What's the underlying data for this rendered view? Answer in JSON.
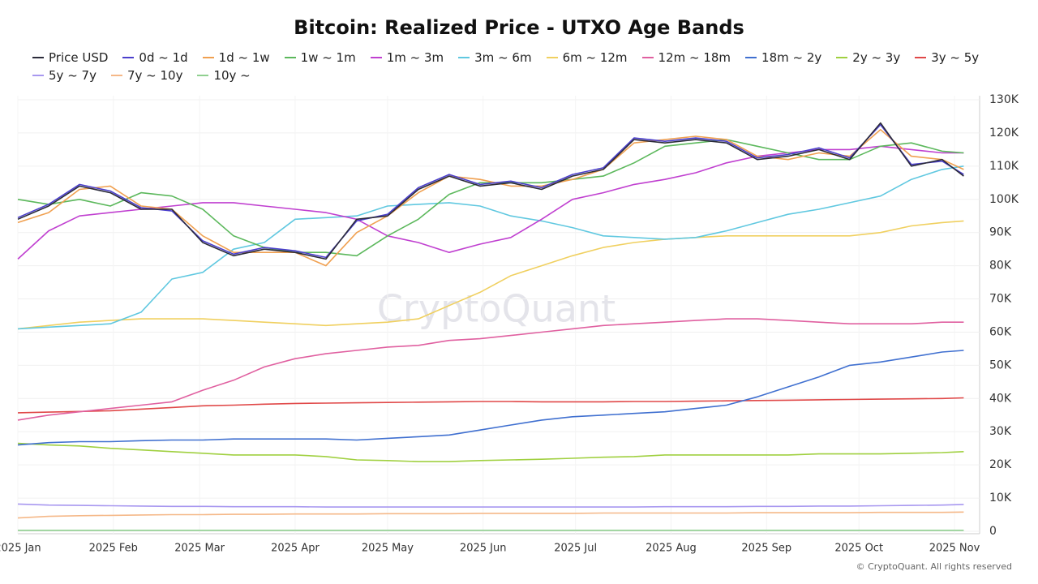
{
  "chart_data": {
    "type": "line",
    "title": "Bitcoin: Realized Price - UTXO Age Bands",
    "watermark": "CryptoQuant",
    "credit": "© CryptoQuant. All rights reserved",
    "x": [
      0,
      10,
      20,
      30,
      40,
      50,
      60,
      70,
      80,
      90,
      100,
      110,
      120,
      130,
      140,
      150,
      160,
      170,
      180,
      190,
      200,
      210,
      220,
      230,
      240,
      250,
      260,
      270,
      280,
      290,
      300,
      307
    ],
    "xlim": [
      0,
      309
    ],
    "xticks": [
      {
        "value": 0,
        "label": "2025 Jan"
      },
      {
        "value": 31,
        "label": "2025 Feb"
      },
      {
        "value": 59,
        "label": "2025 Mar"
      },
      {
        "value": 90,
        "label": "2025 Apr"
      },
      {
        "value": 120,
        "label": "2025 May"
      },
      {
        "value": 151,
        "label": "2025 Jun"
      },
      {
        "value": 181,
        "label": "2025 Jul"
      },
      {
        "value": 212,
        "label": "2025 Aug"
      },
      {
        "value": 243,
        "label": "2025 Sep"
      },
      {
        "value": 273,
        "label": "2025 Oct"
      },
      {
        "value": 304,
        "label": "2025 Nov"
      }
    ],
    "ylim": [
      0,
      130000
    ],
    "yticks": [
      0,
      {
        "value": 10000,
        "label": "10K"
      },
      {
        "value": 20000,
        "label": "20K"
      },
      {
        "value": 30000,
        "label": "30K"
      },
      {
        "value": 40000,
        "label": "40K"
      },
      {
        "value": 50000,
        "label": "50K"
      },
      {
        "value": 60000,
        "label": "60K"
      },
      {
        "value": 70000,
        "label": "70K"
      },
      {
        "value": 80000,
        "label": "80K"
      },
      {
        "value": 90000,
        "label": "90K"
      },
      {
        "value": 100000,
        "label": "100K"
      },
      {
        "value": 110000,
        "label": "110K"
      },
      {
        "value": 120000,
        "label": "120K"
      },
      {
        "value": 130000,
        "label": "130K"
      }
    ],
    "grid": true,
    "series": [
      {
        "name": "Price USD",
        "color": "#2b2b3a",
        "values": [
          94000,
          98000,
          104000,
          102000,
          97000,
          97000,
          87000,
          83000,
          85000,
          84000,
          82000,
          94000,
          95000,
          103000,
          107000,
          104000,
          105000,
          103000,
          107000,
          109000,
          118000,
          117000,
          118000,
          117000,
          112000,
          113000,
          115000,
          112000,
          123000,
          110000,
          112000,
          107000
        ]
      },
      {
        "name": "0d ~ 1d",
        "color": "#4b3fcc",
        "values": [
          94500,
          98500,
          104500,
          102500,
          97500,
          96500,
          87500,
          83500,
          85500,
          84500,
          82500,
          93500,
          95500,
          103500,
          107500,
          104500,
          105500,
          103500,
          107500,
          109500,
          118500,
          117500,
          118500,
          117500,
          112500,
          113500,
          115500,
          112500,
          122500,
          110500,
          111500,
          107500
        ]
      },
      {
        "name": "1d ~ 1w",
        "color": "#f0a050",
        "values": [
          93000,
          96000,
          103000,
          104000,
          98000,
          97000,
          89000,
          84000,
          84000,
          84000,
          80000,
          90000,
          95000,
          102000,
          107000,
          106000,
          104000,
          104000,
          106000,
          109000,
          117000,
          118000,
          119000,
          118000,
          113000,
          112000,
          114000,
          113000,
          121000,
          113000,
          112000,
          109000
        ]
      },
      {
        "name": "1w ~ 1m",
        "color": "#5cb85c",
        "values": [
          100000,
          98500,
          100000,
          98000,
          102000,
          101000,
          97000,
          89000,
          85500,
          84000,
          84000,
          83000,
          89000,
          94000,
          101500,
          105000,
          105000,
          105000,
          106000,
          107000,
          111000,
          116000,
          117000,
          118000,
          116000,
          114000,
          112000,
          112000,
          116000,
          117000,
          114500,
          114000
        ]
      },
      {
        "name": "1m ~ 3m",
        "color": "#c040d0",
        "values": [
          82000,
          90500,
          95000,
          96000,
          97000,
          98000,
          99000,
          99000,
          98000,
          97000,
          96000,
          94000,
          89000,
          87000,
          84000,
          86500,
          88500,
          94000,
          100000,
          102000,
          104500,
          106000,
          108000,
          111000,
          113000,
          114000,
          115000,
          115000,
          116000,
          115000,
          114000,
          114000
        ]
      },
      {
        "name": "3m ~ 6m",
        "color": "#60c8e0",
        "values": [
          61000,
          61500,
          62000,
          62500,
          66000,
          76000,
          78000,
          85000,
          87000,
          94000,
          94500,
          95000,
          98000,
          98500,
          99000,
          98000,
          95000,
          93500,
          91500,
          89000,
          88500,
          88000,
          88500,
          90500,
          93000,
          95500,
          97000,
          99000,
          101000,
          106000,
          109000,
          110000
        ]
      },
      {
        "name": "6m ~ 12m",
        "color": "#f0d060",
        "values": [
          61000,
          62000,
          63000,
          63500,
          64000,
          64000,
          64000,
          63500,
          63000,
          62500,
          62000,
          62500,
          63000,
          64000,
          68000,
          72000,
          77000,
          80000,
          83000,
          85500,
          87000,
          88000,
          88500,
          89000,
          89000,
          89000,
          89000,
          89000,
          90000,
          92000,
          93000,
          93500
        ]
      },
      {
        "name": "12m ~ 18m",
        "color": "#e060a0",
        "values": [
          33500,
          35000,
          36000,
          37000,
          38000,
          39000,
          42500,
          45500,
          49500,
          52000,
          53500,
          54500,
          55500,
          56000,
          57500,
          58000,
          59000,
          60000,
          61000,
          62000,
          62500,
          63000,
          63500,
          64000,
          64000,
          63500,
          63000,
          62500,
          62500,
          62500,
          63000,
          63000
        ]
      },
      {
        "name": "18m ~ 2y",
        "color": "#4070d0",
        "values": [
          26000,
          26700,
          27000,
          27000,
          27300,
          27500,
          27500,
          27800,
          27800,
          27800,
          27800,
          27500,
          28000,
          28500,
          29000,
          30500,
          32000,
          33500,
          34500,
          35000,
          35500,
          36000,
          37000,
          38000,
          40500,
          43500,
          46500,
          50000,
          51000,
          52500,
          54000,
          54500
        ]
      },
      {
        "name": "2y ~ 3y",
        "color": "#a0d040",
        "values": [
          26500,
          26000,
          25700,
          25000,
          24500,
          24000,
          23500,
          23000,
          23000,
          23000,
          22500,
          21500,
          21300,
          21000,
          21000,
          21300,
          21500,
          21700,
          22000,
          22300,
          22500,
          23000,
          23000,
          23000,
          23000,
          23000,
          23300,
          23300,
          23300,
          23500,
          23700,
          24000
        ]
      },
      {
        "name": "3y ~ 5y",
        "color": "#e04848",
        "values": [
          35700,
          35900,
          36100,
          36300,
          36800,
          37300,
          37800,
          38000,
          38300,
          38500,
          38600,
          38700,
          38800,
          38900,
          39000,
          39100,
          39100,
          39000,
          39000,
          39000,
          39100,
          39100,
          39200,
          39300,
          39400,
          39500,
          39600,
          39700,
          39800,
          39900,
          40000,
          40200
        ]
      },
      {
        "name": "5y ~ 7y",
        "color": "#a898f0",
        "values": [
          8200,
          7900,
          7800,
          7700,
          7600,
          7500,
          7500,
          7400,
          7400,
          7400,
          7300,
          7300,
          7300,
          7300,
          7300,
          7300,
          7300,
          7300,
          7300,
          7300,
          7300,
          7400,
          7400,
          7400,
          7500,
          7500,
          7600,
          7600,
          7700,
          7800,
          7900,
          8100
        ]
      },
      {
        "name": "7y ~ 10y",
        "color": "#f5b888",
        "values": [
          4000,
          4500,
          4700,
          4800,
          4900,
          5000,
          5000,
          5100,
          5100,
          5200,
          5200,
          5200,
          5300,
          5300,
          5300,
          5400,
          5400,
          5400,
          5400,
          5500,
          5500,
          5500,
          5500,
          5500,
          5600,
          5600,
          5600,
          5600,
          5700,
          5700,
          5700,
          5800
        ]
      },
      {
        "name": "10y ~",
        "color": "#90d090",
        "values": [
          300,
          300,
          300,
          300,
          300,
          300,
          300,
          300,
          300,
          300,
          300,
          300,
          300,
          300,
          300,
          300,
          300,
          300,
          300,
          300,
          300,
          300,
          300,
          300,
          300,
          300,
          300,
          300,
          300,
          300,
          300,
          300
        ]
      }
    ]
  }
}
